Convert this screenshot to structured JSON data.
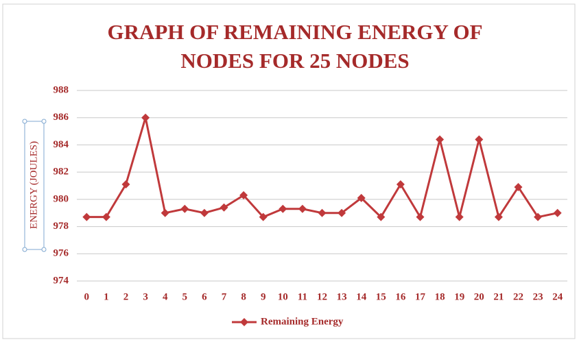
{
  "chart_data": {
    "type": "line",
    "title": [
      "GRAPH OF REMAINING ENERGY OF",
      "NODES FOR 25 NODES"
    ],
    "y_label": "ENERGY  (JOULES)",
    "categories": [
      "0",
      "1",
      "2",
      "3",
      "4",
      "5",
      "6",
      "7",
      "8",
      "9",
      "10",
      "11",
      "12",
      "13",
      "14",
      "15",
      "16",
      "17",
      "18",
      "19",
      "20",
      "21",
      "22",
      "23",
      "24"
    ],
    "series": [
      {
        "name": "Remaining Energy",
        "color": "#c0393b",
        "values": [
          978.7,
          978.7,
          981.1,
          986.0,
          979.0,
          979.3,
          979.0,
          979.4,
          980.3,
          978.7,
          979.3,
          979.3,
          979.0,
          979.0,
          980.1,
          978.7,
          981.1,
          978.7,
          984.4,
          978.7,
          984.4,
          978.7,
          980.9,
          978.7,
          979.0
        ]
      }
    ],
    "ylim": [
      974,
      988
    ],
    "yticks": [
      974,
      976,
      978,
      980,
      982,
      984,
      986,
      988
    ],
    "grid": true,
    "legend": "bottom"
  }
}
